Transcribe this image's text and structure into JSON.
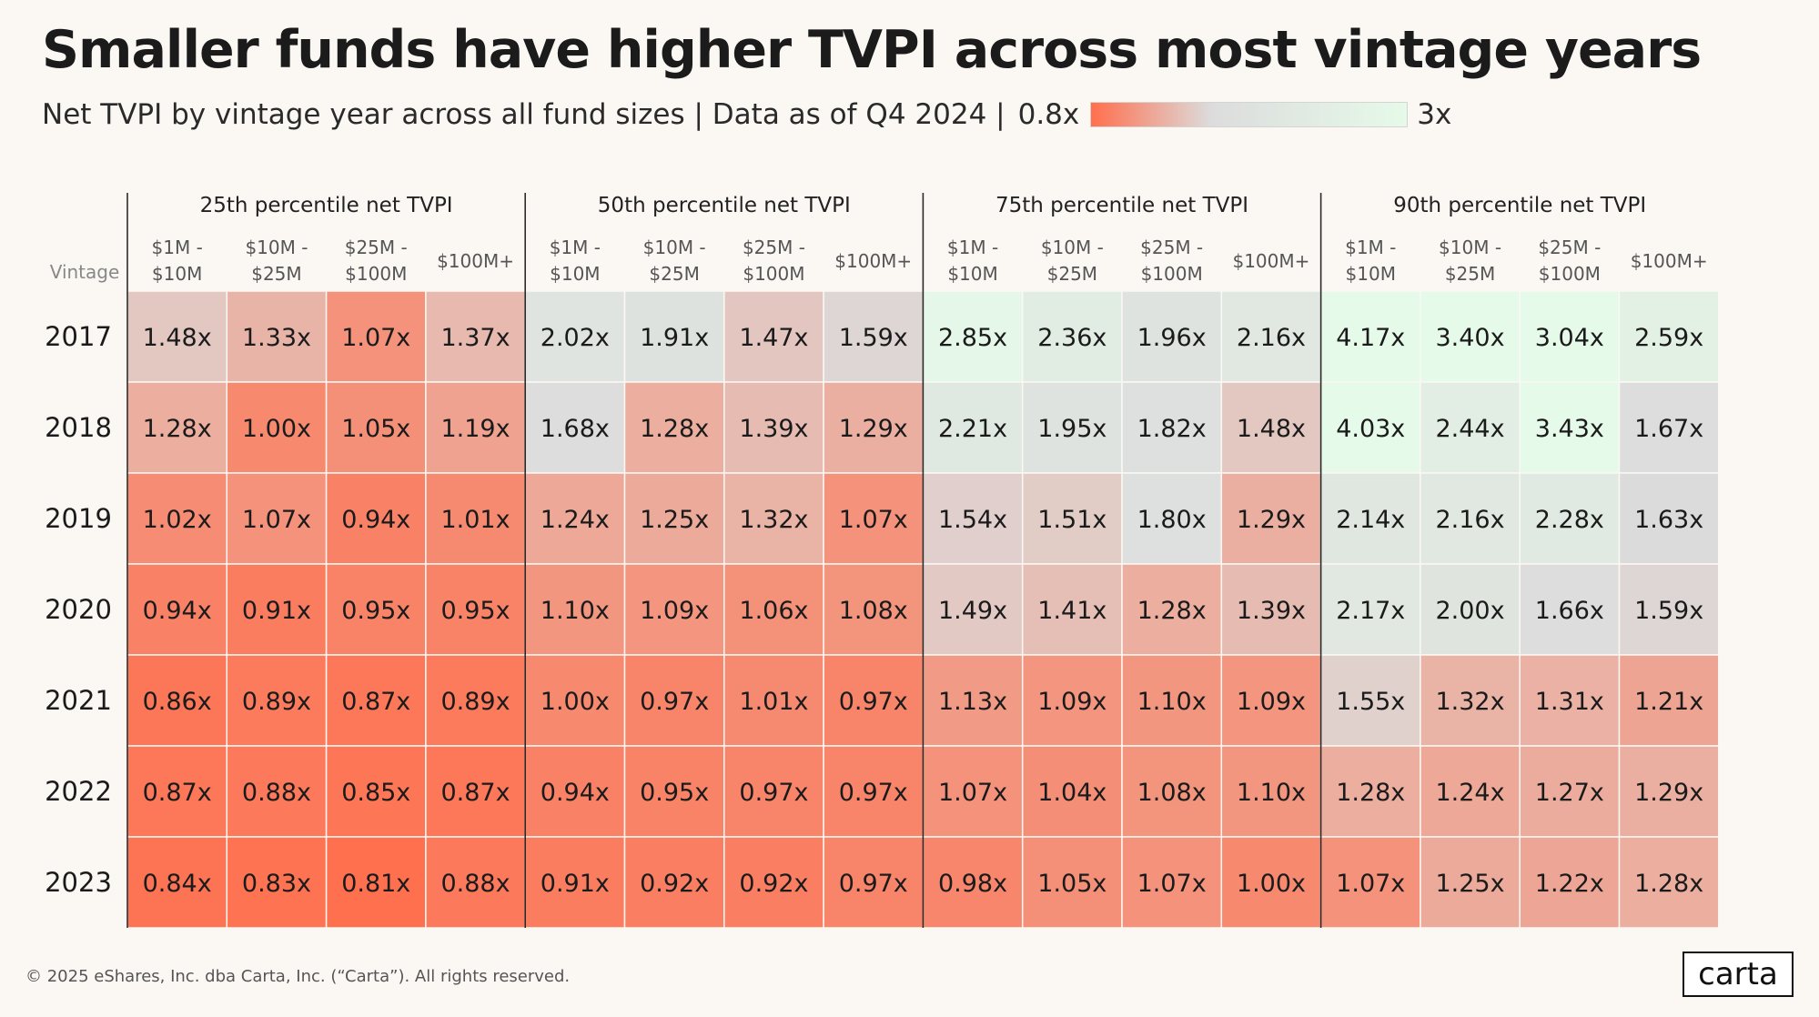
{
  "title": "Smaller funds have higher TVPI across most vintage years",
  "subtitle": "Net TVPI by vintage year across all fund sizes | Data as of Q4 2024 |",
  "legend": {
    "min_label": "0.8x",
    "max_label": "3x",
    "min_value": 0.8,
    "max_value": 3.0
  },
  "colors": {
    "low": "#ff6f4d",
    "mid": "#dcdcdc",
    "high": "#e6fae9",
    "background": "#fbf8f4"
  },
  "footer": "© 2025 eShares, Inc. dba Carta, Inc. (“Carta”). All rights reserved.",
  "logo": "carta",
  "chart_data": {
    "type": "heatmap",
    "title": "Smaller funds have higher TVPI across most vintage years",
    "row_header": "Vintage",
    "rows": [
      "2017",
      "2018",
      "2019",
      "2020",
      "2021",
      "2022",
      "2023"
    ],
    "groups": [
      {
        "label": "25th percentile net TVPI",
        "columns": [
          "$1M -\n$10M",
          "$10M -\n$25M",
          "$25M -\n$100M",
          "$100M+"
        ],
        "values": [
          [
            1.48,
            1.33,
            1.07,
            1.37
          ],
          [
            1.28,
            1.0,
            1.05,
            1.19
          ],
          [
            1.02,
            1.07,
            0.94,
            1.01
          ],
          [
            0.94,
            0.91,
            0.95,
            0.95
          ],
          [
            0.86,
            0.89,
            0.87,
            0.89
          ],
          [
            0.87,
            0.88,
            0.85,
            0.87
          ],
          [
            0.84,
            0.83,
            0.81,
            0.88
          ]
        ]
      },
      {
        "label": "50th percentile net TVPI",
        "columns": [
          "$1M -\n$10M",
          "$10M -\n$25M",
          "$25M -\n$100M",
          "$100M+"
        ],
        "values": [
          [
            2.02,
            1.91,
            1.47,
            1.59
          ],
          [
            1.68,
            1.28,
            1.39,
            1.29
          ],
          [
            1.24,
            1.25,
            1.32,
            1.07
          ],
          [
            1.1,
            1.09,
            1.06,
            1.08
          ],
          [
            1.0,
            0.97,
            1.01,
            0.97
          ],
          [
            0.94,
            0.95,
            0.97,
            0.97
          ],
          [
            0.91,
            0.92,
            0.92,
            0.97
          ]
        ]
      },
      {
        "label": "75th percentile net TVPI",
        "columns": [
          "$1M -\n$10M",
          "$10M -\n$25M",
          "$25M -\n$100M",
          "$100M+"
        ],
        "values": [
          [
            2.85,
            2.36,
            1.96,
            2.16
          ],
          [
            2.21,
            1.95,
            1.82,
            1.48
          ],
          [
            1.54,
            1.51,
            1.8,
            1.29
          ],
          [
            1.49,
            1.41,
            1.28,
            1.39
          ],
          [
            1.13,
            1.09,
            1.1,
            1.09
          ],
          [
            1.07,
            1.04,
            1.08,
            1.1
          ],
          [
            0.98,
            1.05,
            1.07,
            1.0
          ]
        ]
      },
      {
        "label": "90th percentile net TVPI",
        "columns": [
          "$1M -\n$10M",
          "$10M -\n$25M",
          "$25M -\n$100M",
          "$100M+"
        ],
        "values": [
          [
            4.17,
            3.4,
            3.04,
            2.59
          ],
          [
            4.03,
            2.44,
            3.43,
            1.67
          ],
          [
            2.14,
            2.16,
            2.28,
            1.63
          ],
          [
            2.17,
            2.0,
            1.66,
            1.59
          ],
          [
            1.55,
            1.32,
            1.31,
            1.21
          ],
          [
            1.28,
            1.24,
            1.27,
            1.29
          ],
          [
            1.07,
            1.25,
            1.22,
            1.28
          ]
        ]
      }
    ],
    "value_suffix": "x",
    "color_scale": {
      "min": 0.8,
      "max": 3.0
    }
  }
}
